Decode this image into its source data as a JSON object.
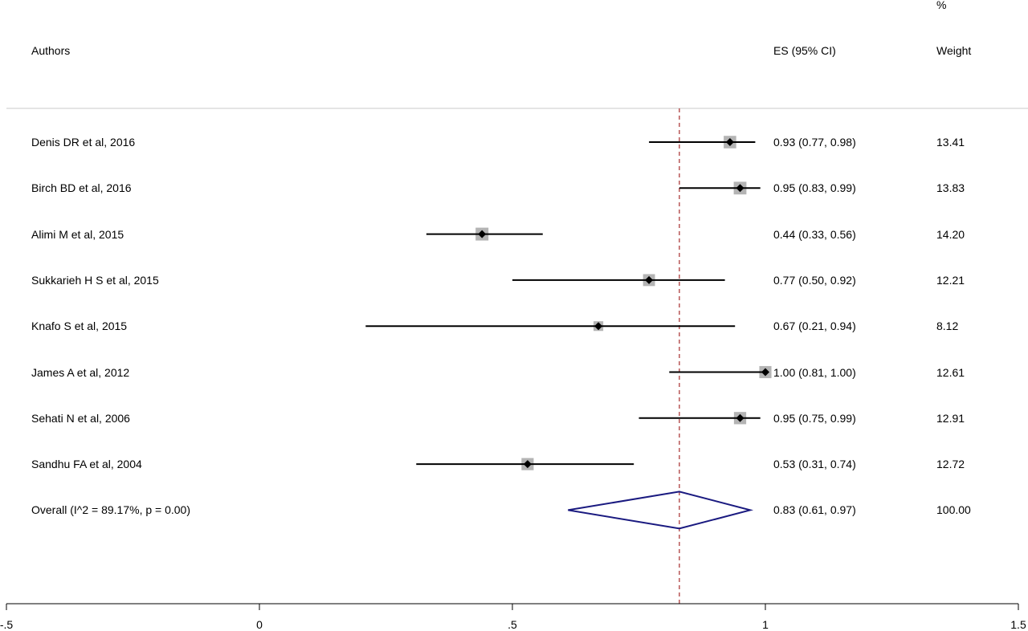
{
  "headers": {
    "authors": "Authors",
    "es": "ES (95% CI)",
    "weight_pct": "%",
    "weight": "Weight"
  },
  "chart_data": {
    "type": "forest",
    "xlim": [
      -0.5,
      1.5
    ],
    "xticks": [
      -0.5,
      0,
      0.5,
      1,
      1.5
    ],
    "xtick_labels": [
      "-.5",
      "0",
      ".5",
      "1",
      "1.5"
    ],
    "reference_line": 0.83,
    "studies": [
      {
        "label": "Denis DR et al, 2016",
        "es": 0.93,
        "lo": 0.77,
        "hi": 0.98,
        "weight": 13.41,
        "es_text": "0.93 (0.77, 0.98)",
        "weight_text": "13.41"
      },
      {
        "label": "Birch BD et al, 2016",
        "es": 0.95,
        "lo": 0.83,
        "hi": 0.99,
        "weight": 13.83,
        "es_text": "0.95 (0.83, 0.99)",
        "weight_text": "13.83"
      },
      {
        "label": "Alimi M et al, 2015",
        "es": 0.44,
        "lo": 0.33,
        "hi": 0.56,
        "weight": 14.2,
        "es_text": "0.44 (0.33, 0.56)",
        "weight_text": "14.20"
      },
      {
        "label": "Sukkarieh H S et al, 2015",
        "es": 0.77,
        "lo": 0.5,
        "hi": 0.92,
        "weight": 12.21,
        "es_text": "0.77 (0.50, 0.92)",
        "weight_text": "12.21"
      },
      {
        "label": "Knafo S et al, 2015",
        "es": 0.67,
        "lo": 0.21,
        "hi": 0.94,
        "weight": 8.12,
        "es_text": "0.67 (0.21, 0.94)",
        "weight_text": "8.12"
      },
      {
        "label": "James A et al, 2012",
        "es": 1.0,
        "lo": 0.81,
        "hi": 1.0,
        "weight": 12.61,
        "es_text": "1.00 (0.81, 1.00)",
        "weight_text": "12.61"
      },
      {
        "label": "Sehati N et al, 2006",
        "es": 0.95,
        "lo": 0.75,
        "hi": 0.99,
        "weight": 12.91,
        "es_text": "0.95 (0.75, 0.99)",
        "weight_text": "12.91"
      },
      {
        "label": "Sandhu FA et al, 2004",
        "es": 0.53,
        "lo": 0.31,
        "hi": 0.74,
        "weight": 12.72,
        "es_text": "0.53 (0.31, 0.74)",
        "weight_text": "12.72"
      }
    ],
    "overall": {
      "label": "Overall  (I^2 = 89.17%, p = 0.00)",
      "es": 0.83,
      "lo": 0.61,
      "hi": 0.97,
      "weight": 100.0,
      "es_text": "0.83 (0.61, 0.97)",
      "weight_text": "100.00"
    },
    "colors": {
      "line": "#000000",
      "box": "#b4b4b4",
      "diamond": "#1a1a80",
      "reference": "#a52a2a",
      "divider": "#c8c8c8"
    }
  }
}
